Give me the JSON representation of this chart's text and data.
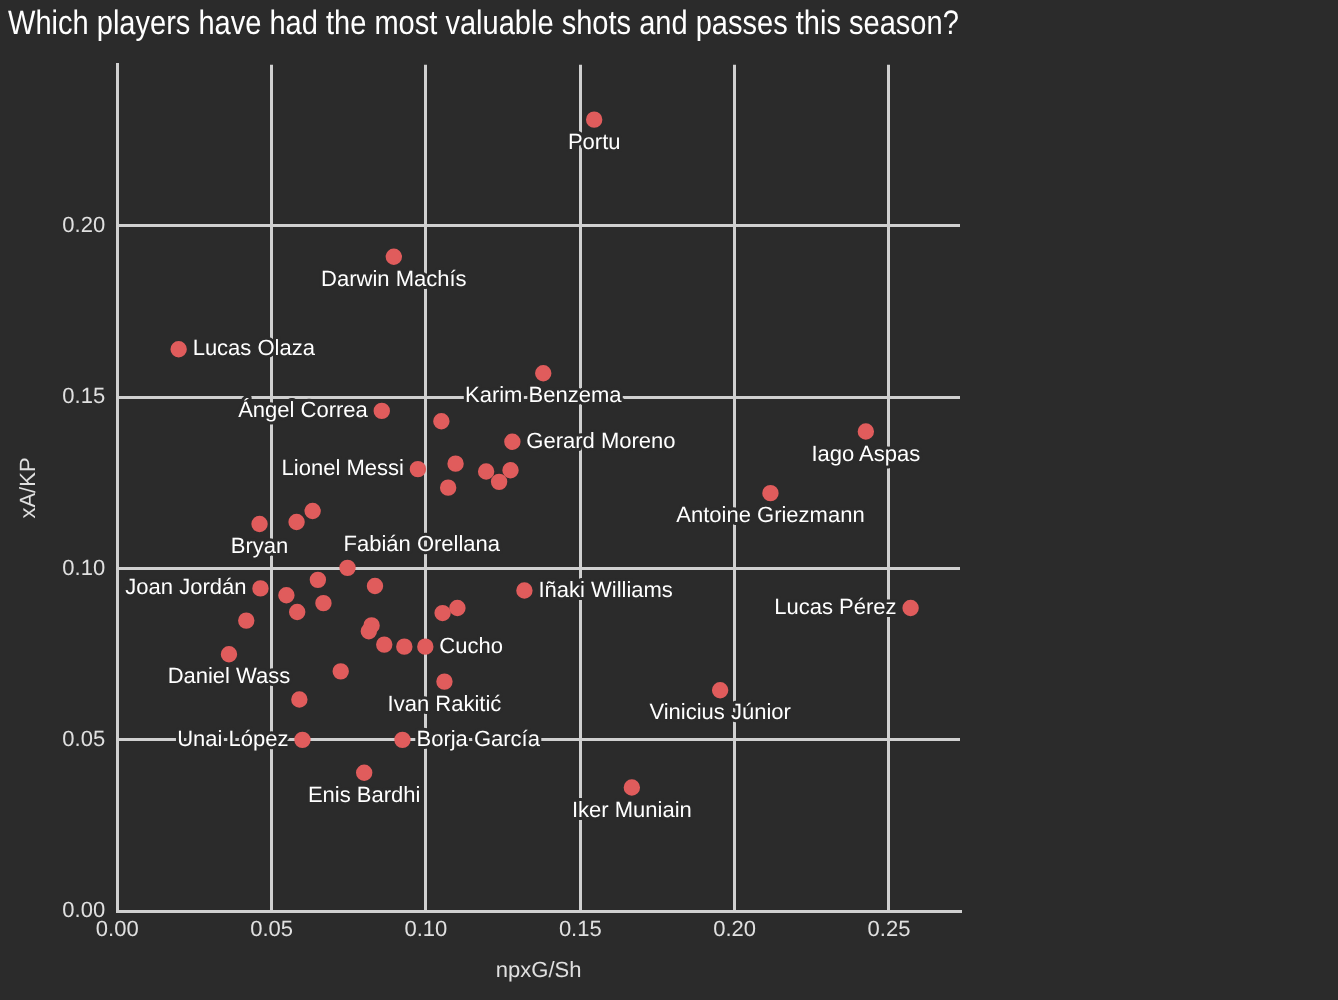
{
  "chart_data": {
    "type": "scatter",
    "title": "Which players have had the most valuable shots and passes this season?",
    "xlabel": "npxG/Sh",
    "ylabel": "xA/KP",
    "xlim": [
      0,
      0.273
    ],
    "ylim": [
      0,
      0.247
    ],
    "xticks": [
      {
        "value": 0,
        "label": "0.00"
      },
      {
        "value": 0.05,
        "label": "0.05"
      },
      {
        "value": 0.1,
        "label": "0.10"
      },
      {
        "value": 0.15,
        "label": "0.15"
      },
      {
        "value": 0.2,
        "label": "0.20"
      },
      {
        "value": 0.25,
        "label": "0.25"
      }
    ],
    "yticks": [
      {
        "value": 0,
        "label": "0.00"
      },
      {
        "value": 0.05,
        "label": "0.05"
      },
      {
        "value": 0.1,
        "label": "0.10"
      },
      {
        "value": 0.15,
        "label": "0.15"
      },
      {
        "value": 0.2,
        "label": "0.20"
      }
    ],
    "grid": true,
    "legend": false,
    "marker": "circle",
    "series": [
      {
        "color": "#e05c5c",
        "x": [
          0.1545,
          0.0896,
          0.0199,
          0.138,
          0.0857,
          0.105,
          0.128,
          0.0974,
          0.1096,
          0.1195,
          0.1274,
          0.1237,
          0.1072,
          0.0461,
          0.0581,
          0.0633,
          0.2425,
          0.2116,
          0.0746,
          0.0464,
          0.0548,
          0.065,
          0.0835,
          0.0668,
          0.0583,
          0.0418,
          0.0824,
          0.0815,
          0.0865,
          0.093,
          0.0998,
          0.1054,
          0.1102,
          0.1319,
          0.0362,
          0.0724,
          0.106,
          0.059,
          0.06,
          0.0924,
          0.08,
          0.1667,
          0.1953,
          0.257
        ],
        "values": [
          0.231,
          0.191,
          0.164,
          0.157,
          0.146,
          0.143,
          0.137,
          0.129,
          0.1306,
          0.1283,
          0.1287,
          0.1253,
          0.1236,
          0.113,
          0.1136,
          0.1168,
          0.14,
          0.122,
          0.1002,
          0.0942,
          0.0922,
          0.0967,
          0.0949,
          0.0899,
          0.0873,
          0.0848,
          0.0834,
          0.0817,
          0.0778,
          0.0772,
          0.0772,
          0.087,
          0.0885,
          0.0936,
          0.075,
          0.07,
          0.067,
          0.0618,
          0.05,
          0.05,
          0.0404,
          0.0361,
          0.0645,
          0.0885
        ]
      }
    ],
    "annotations": [
      {
        "text": "Portu",
        "x": 0.1545,
        "y": 0.231
      },
      {
        "text": "Darwin Machís",
        "x": 0.0896,
        "y": 0.191
      },
      {
        "text": "Lucas Olaza",
        "x": 0.0199,
        "y": 0.164
      },
      {
        "text": "Karim Benzema",
        "x": 0.138,
        "y": 0.157
      },
      {
        "text": "Ángel Correa",
        "x": 0.0857,
        "y": 0.146
      },
      {
        "text": "Gerard Moreno",
        "x": 0.128,
        "y": 0.137
      },
      {
        "text": "Lionel Messi",
        "x": 0.0974,
        "y": 0.129
      },
      {
        "text": "Bryan",
        "x": 0.0461,
        "y": 0.113
      },
      {
        "text": "Fabián Orellana",
        "x": 0.0746,
        "y": 0.1002
      },
      {
        "text": "Joan Jordán",
        "x": 0.0464,
        "y": 0.0942
      },
      {
        "text": "Iñaki Williams",
        "x": 0.1319,
        "y": 0.0936
      },
      {
        "text": "Cucho",
        "x": 0.0998,
        "y": 0.0772
      },
      {
        "text": "Daniel Wass",
        "x": 0.0362,
        "y": 0.075
      },
      {
        "text": "Ivan Rakitić",
        "x": 0.106,
        "y": 0.067
      },
      {
        "text": "Unai López",
        "x": 0.06,
        "y": 0.05
      },
      {
        "text": "Borja García",
        "x": 0.0924,
        "y": 0.05
      },
      {
        "text": "Enis Bardhi",
        "x": 0.08,
        "y": 0.0404
      },
      {
        "text": "Iker Muniain",
        "x": 0.1667,
        "y": 0.0361
      },
      {
        "text": "Vinicius Júnior",
        "x": 0.1953,
        "y": 0.0645
      },
      {
        "text": "Lucas Pérez",
        "x": 0.257,
        "y": 0.0885
      },
      {
        "text": "Iago Aspas",
        "x": 0.2425,
        "y": 0.14
      },
      {
        "text": "Antoine Griezmann",
        "x": 0.2116,
        "y": 0.122
      }
    ]
  }
}
